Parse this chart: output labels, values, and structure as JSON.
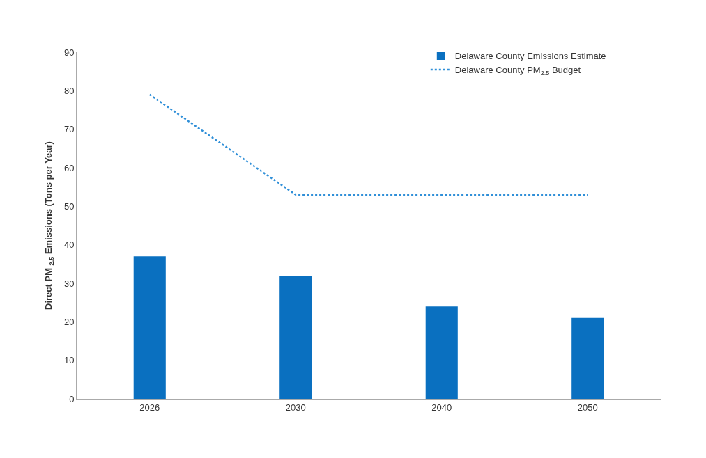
{
  "chart_data": {
    "type": "bar",
    "categories": [
      "2026",
      "2030",
      "2040",
      "2050"
    ],
    "ylabel": "Direct PM $_{2.5}$ Emissions (Tons per Year)",
    "series": [
      {
        "name": "Delaware County Emissions Estimate",
        "color": "#0a70c0",
        "values": [
          37,
          32,
          24,
          21
        ]
      },
      {
        "name": "Delaware County PM$_{2.5}$ Budget",
        "type": "line",
        "line_style": "dotted",
        "marker": "none",
        "color": "#2f8fd8",
        "values": [
          79,
          53,
          53,
          53
        ]
      }
    ],
    "ylim": [
      0,
      90
    ],
    "yticks": [
      0,
      10,
      20,
      30,
      40,
      50,
      60,
      70,
      80,
      90
    ],
    "grid": false,
    "legend": "top right"
  }
}
